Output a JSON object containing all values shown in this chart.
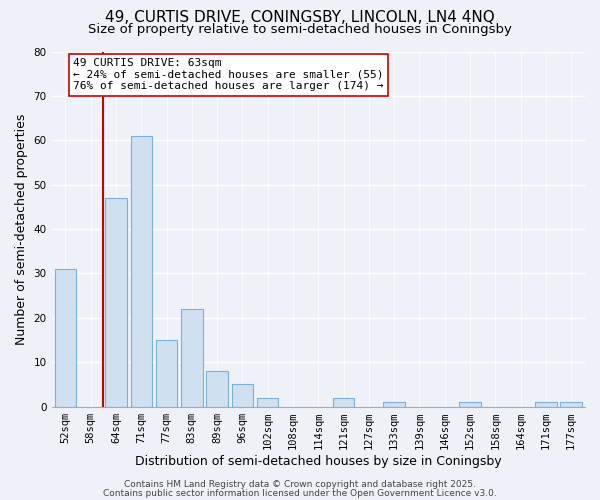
{
  "title": "49, CURTIS DRIVE, CONINGSBY, LINCOLN, LN4 4NQ",
  "subtitle": "Size of property relative to semi-detached houses in Coningsby",
  "xlabel": "Distribution of semi-detached houses by size in Coningsby",
  "ylabel": "Number of semi-detached properties",
  "bar_labels": [
    "52sqm",
    "58sqm",
    "64sqm",
    "71sqm",
    "77sqm",
    "83sqm",
    "89sqm",
    "96sqm",
    "102sqm",
    "108sqm",
    "114sqm",
    "121sqm",
    "127sqm",
    "133sqm",
    "139sqm",
    "146sqm",
    "152sqm",
    "158sqm",
    "164sqm",
    "171sqm",
    "177sqm"
  ],
  "bar_values": [
    31,
    0,
    47,
    61,
    15,
    22,
    8,
    5,
    2,
    0,
    0,
    2,
    0,
    1,
    0,
    0,
    1,
    0,
    0,
    1,
    1
  ],
  "bar_color": "#cfe0f0",
  "bar_edge_color": "#7aafe0",
  "vline_color": "#cc0000",
  "vline_index": 2,
  "ylim": [
    0,
    80
  ],
  "annotation_title": "49 CURTIS DRIVE: 63sqm",
  "annotation_line1": "← 24% of semi-detached houses are smaller (55)",
  "annotation_line2": "76% of semi-detached houses are larger (174) →",
  "annotation_box_color": "#ffffff",
  "annotation_box_edge": "#cc0000",
  "footer1": "Contains HM Land Registry data © Crown copyright and database right 2025.",
  "footer2": "Contains public sector information licensed under the Open Government Licence v3.0.",
  "background_color": "#eef2f8",
  "title_fontsize": 11,
  "subtitle_fontsize": 9.5,
  "xlabel_fontsize": 9,
  "ylabel_fontsize": 9,
  "tick_fontsize": 7.5,
  "footer_fontsize": 6.5,
  "annotation_fontsize": 8
}
